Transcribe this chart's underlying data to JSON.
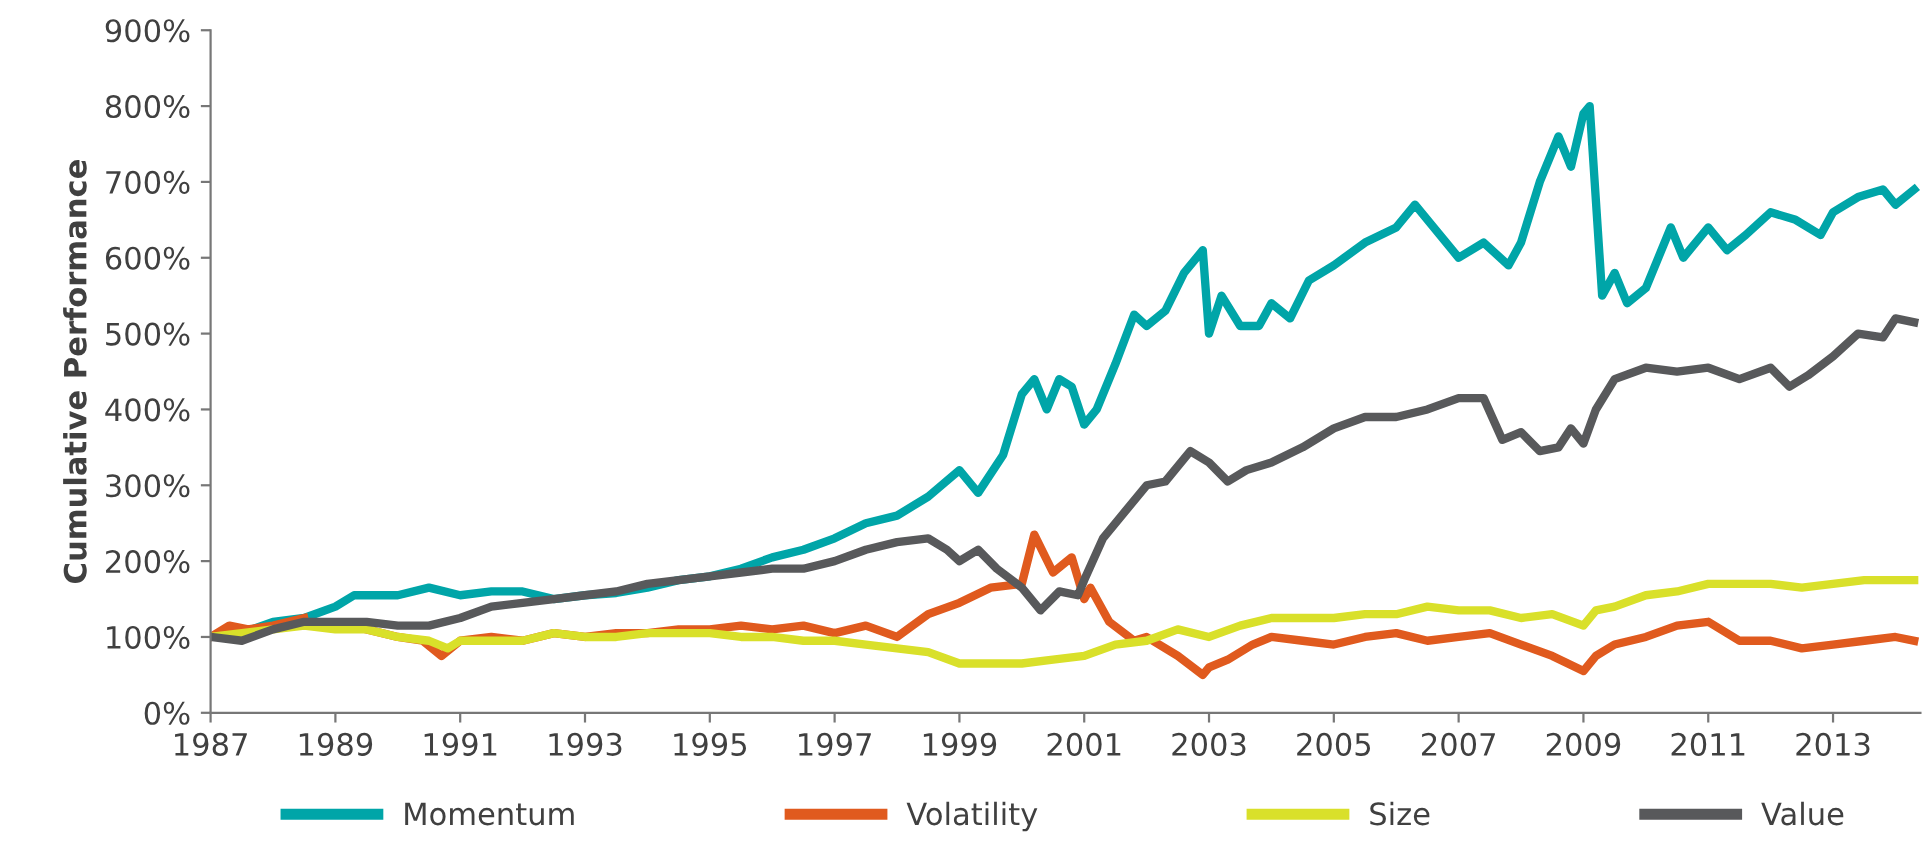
{
  "chart_data": {
    "type": "line",
    "ylabel": "Cumulative Performance",
    "xlim": [
      1987,
      2014.4
    ],
    "xticks": [
      1987,
      1989,
      1991,
      1993,
      1995,
      1997,
      1999,
      2001,
      2003,
      2005,
      2007,
      2009,
      2011,
      2013
    ],
    "ylim": [
      0,
      900
    ],
    "yticks": [
      {
        "value": 0,
        "label": "0%"
      },
      {
        "value": 100,
        "label": "100%"
      },
      {
        "value": 200,
        "label": "200%"
      },
      {
        "value": 300,
        "label": "300%"
      },
      {
        "value": 400,
        "label": "400%"
      },
      {
        "value": 500,
        "label": "500%"
      },
      {
        "value": 600,
        "label": "600%"
      },
      {
        "value": 700,
        "label": "700%"
      },
      {
        "value": 800,
        "label": "800%"
      },
      {
        "value": 900,
        "label": "900%"
      }
    ],
    "grid": false,
    "legend": "bottom",
    "line_style": "solid",
    "marker": "none",
    "series": [
      {
        "name": "Momentum",
        "color": "#00a5a8",
        "x": [
          1987,
          1987.5,
          1988,
          1988.5,
          1989,
          1989.3,
          1990,
          1990.5,
          1991,
          1991.5,
          1992,
          1992.5,
          1993,
          1993.5,
          1994,
          1994.5,
          1995,
          1995.5,
          1996,
          1996.5,
          1997,
          1997.5,
          1998,
          1998.5,
          1999,
          1999.3,
          1999.7,
          2000,
          2000.2,
          2000.4,
          2000.6,
          2000.8,
          2001,
          2001.2,
          2001.5,
          2001.8,
          2002,
          2002.3,
          2002.6,
          2002.9,
          2003,
          2003.2,
          2003.5,
          2003.8,
          2004,
          2004.3,
          2004.6,
          2005,
          2005.5,
          2006,
          2006.3,
          2006.6,
          2007,
          2007.4,
          2007.8,
          2008,
          2008.3,
          2008.6,
          2008.8,
          2009,
          2009.1,
          2009.3,
          2009.5,
          2009.7,
          2010,
          2010.4,
          2010.6,
          2011,
          2011.3,
          2011.6,
          2012,
          2012.4,
          2012.8,
          2013,
          2013.4,
          2013.8,
          2014,
          2014.3
        ],
        "values": [
          100,
          105,
          120,
          125,
          140,
          155,
          155,
          165,
          155,
          160,
          160,
          150,
          155,
          158,
          165,
          175,
          180,
          190,
          205,
          215,
          230,
          250,
          260,
          285,
          320,
          290,
          340,
          420,
          440,
          400,
          440,
          430,
          380,
          400,
          460,
          525,
          510,
          530,
          580,
          610,
          500,
          550,
          510,
          510,
          540,
          520,
          570,
          590,
          620,
          640,
          670,
          640,
          600,
          620,
          590,
          620,
          700,
          760,
          720,
          790,
          800,
          550,
          580,
          540,
          560,
          640,
          600,
          640,
          610,
          630,
          660,
          650,
          630,
          660,
          680,
          690,
          670,
          690
        ]
      },
      {
        "name": "Volatility",
        "color": "#e05a1e",
        "x": [
          1987,
          1987.3,
          1987.6,
          1988,
          1988.5,
          1989,
          1989.5,
          1990,
          1990.4,
          1990.7,
          1991,
          1991.5,
          1992,
          1992.5,
          1993,
          1993.5,
          1994,
          1994.5,
          1995,
          1995.5,
          1996,
          1996.5,
          1997,
          1997.5,
          1998,
          1998.5,
          1999,
          1999.5,
          2000,
          2000.2,
          2000.5,
          2000.8,
          2001,
          2001.1,
          2001.4,
          2001.8,
          2002,
          2002.5,
          2002.9,
          2003,
          2003.3,
          2003.7,
          2004,
          2004.5,
          2005,
          2005.5,
          2006,
          2006.5,
          2007,
          2007.5,
          2008,
          2008.5,
          2009,
          2009.2,
          2009.5,
          2010,
          2010.5,
          2011,
          2011.5,
          2012,
          2012.5,
          2013,
          2013.5,
          2014,
          2014.3
        ],
        "values": [
          100,
          115,
          110,
          115,
          125,
          null,
          110,
          100,
          95,
          75,
          95,
          100,
          95,
          105,
          100,
          105,
          105,
          110,
          110,
          115,
          110,
          115,
          105,
          115,
          100,
          130,
          145,
          165,
          170,
          235,
          185,
          205,
          150,
          165,
          120,
          95,
          100,
          75,
          50,
          60,
          70,
          90,
          100,
          95,
          90,
          100,
          105,
          95,
          100,
          105,
          90,
          75,
          55,
          75,
          90,
          100,
          115,
          120,
          95,
          95,
          85,
          90,
          95,
          100,
          95
        ]
      },
      {
        "name": "Size",
        "color": "#d9e02a",
        "x": [
          1987,
          1987.5,
          1988,
          1988.5,
          1989,
          1989.5,
          1990,
          1990.5,
          1990.8,
          1991,
          1991.5,
          1992,
          1992.5,
          1993,
          1993.5,
          1994,
          1994.5,
          1995,
          1995.5,
          1996,
          1996.5,
          1997,
          1997.5,
          1998,
          1998.5,
          1999,
          1999.5,
          2000,
          2000.5,
          2001,
          2001.5,
          2002,
          2002.5,
          2003,
          2003.5,
          2004,
          2004.5,
          2005,
          2005.5,
          2006,
          2006.5,
          2007,
          2007.5,
          2008,
          2008.5,
          2009,
          2009.2,
          2009.5,
          2010,
          2010.5,
          2011,
          2011.5,
          2012,
          2012.5,
          2013,
          2013.5,
          2014,
          2014.3
        ],
        "values": [
          100,
          105,
          110,
          115,
          110,
          110,
          100,
          95,
          85,
          95,
          95,
          95,
          105,
          100,
          100,
          105,
          105,
          105,
          100,
          100,
          95,
          95,
          90,
          85,
          80,
          65,
          65,
          65,
          70,
          75,
          90,
          95,
          110,
          100,
          115,
          125,
          125,
          125,
          130,
          130,
          140,
          135,
          135,
          125,
          130,
          115,
          135,
          140,
          155,
          160,
          170,
          170,
          170,
          165,
          170,
          175,
          175,
          175
        ]
      },
      {
        "name": "Value",
        "color": "#58595b",
        "x": [
          1987,
          1987.5,
          1988,
          1988.5,
          1989,
          1989.5,
          1990,
          1990.5,
          1991,
          1991.5,
          1992,
          1992.5,
          1993,
          1993.5,
          1994,
          1994.5,
          1995,
          1995.5,
          1996,
          1996.5,
          1997,
          1997.5,
          1998,
          1998.5,
          1998.8,
          1999,
          1999.3,
          1999.6,
          2000,
          2000.3,
          2000.6,
          2000.9,
          2001,
          2001.3,
          2001.6,
          2002,
          2002.3,
          2002.7,
          2003,
          2003.3,
          2003.6,
          2004,
          2004.5,
          2005,
          2005.5,
          2006,
          2006.5,
          2007,
          2007.4,
          2007.7,
          2008,
          2008.3,
          2008.6,
          2008.8,
          2009,
          2009.2,
          2009.5,
          2010,
          2010.5,
          2011,
          2011.5,
          2012,
          2012.3,
          2012.6,
          2013,
          2013.4,
          2013.8,
          2014,
          2014.3
        ],
        "values": [
          100,
          95,
          110,
          120,
          120,
          120,
          115,
          115,
          125,
          140,
          145,
          150,
          155,
          160,
          170,
          175,
          180,
          185,
          190,
          190,
          200,
          215,
          225,
          230,
          215,
          200,
          215,
          190,
          165,
          135,
          160,
          155,
          175,
          230,
          260,
          300,
          305,
          345,
          330,
          305,
          320,
          330,
          350,
          375,
          390,
          390,
          400,
          415,
          415,
          360,
          370,
          345,
          350,
          375,
          355,
          400,
          440,
          455,
          450,
          455,
          440,
          455,
          430,
          445,
          470,
          500,
          495,
          520,
          515
        ]
      }
    ]
  }
}
